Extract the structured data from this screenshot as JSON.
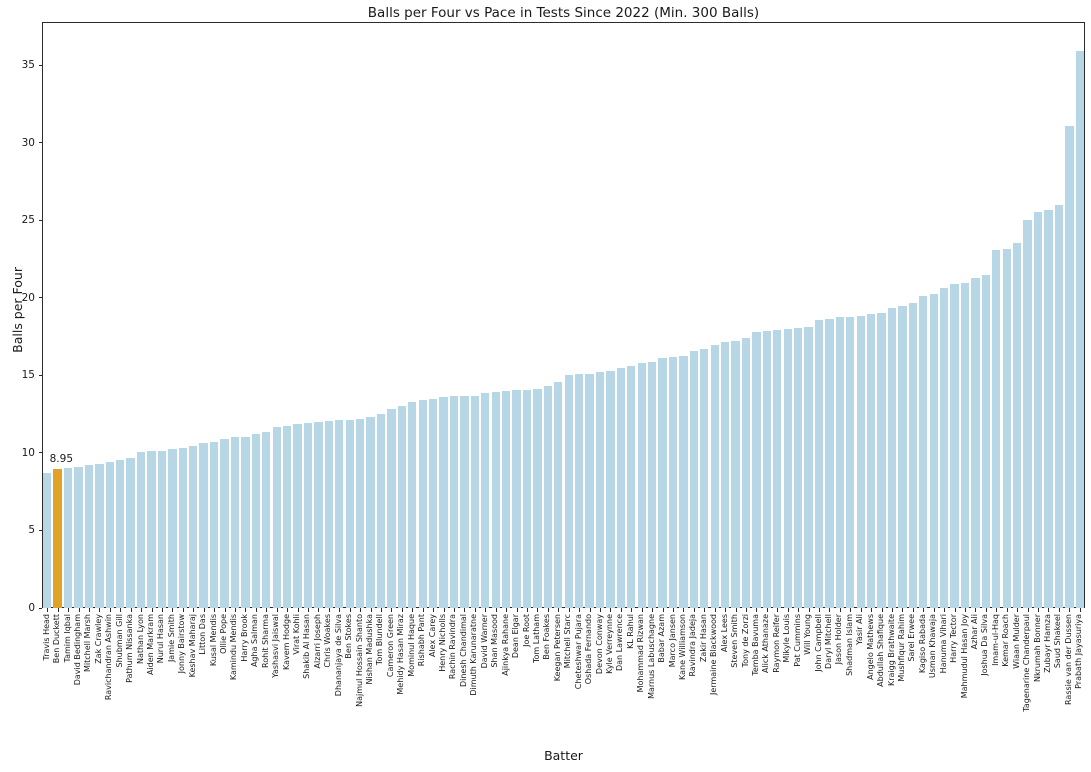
{
  "chart_data": {
    "type": "bar",
    "title": "Balls per Four vs Pace in Tests Since 2022 (Min. 300 Balls)",
    "xlabel": "Batter",
    "ylabel": "Balls per Four",
    "yticks": [
      0,
      5,
      10,
      15,
      20,
      25,
      30,
      35
    ],
    "ylim": [
      0,
      37.8
    ],
    "grid": false,
    "legend": null,
    "bar_color": "#b7d7e6",
    "highlight": {
      "index": 1,
      "color": "#e2a127",
      "label": "8.95",
      "value": 8.95
    },
    "categories": [
      "Travis Head",
      "Ben Duckett",
      "Tamim Iqbal",
      "David Bedingham",
      "Mitchell Marsh",
      "Zak Crawley",
      "Ravichandran Ashwin",
      "Shubman Gill",
      "Pathum Nissanka",
      "Nathan Lyon",
      "Aiden Markram",
      "Nurul Hasan",
      "Jamie Smith",
      "Jonny Bairstow",
      "Keshav Maharaj",
      "Litton Das",
      "Kusal Mendis",
      "Ollie Pope",
      "Kamindu Mendis",
      "Harry Brook",
      "Agha Salman",
      "Rohit Sharma",
      "Yashasvi Jaiswal",
      "Kavem Hodge",
      "Virat Kohli",
      "Shakib Al Hasan",
      "Alzarri Joseph",
      "Chris Woakes",
      "Dhananjaya de Silva",
      "Ben Stokes",
      "Najmul Hossain Shanto",
      "Nishan Madushka",
      "Tom Blundell",
      "Cameron Green",
      "Mehidy Hasan Miraz",
      "Mominul Haque",
      "Rishabh Pant",
      "Alex Carey",
      "Henry Nicholls",
      "Rachin Ravindra",
      "Dinesh Chandimal",
      "Dimuth Karunaratne",
      "David Warner",
      "Shan Masood",
      "Ajinkya Rahane",
      "Dean Elgar",
      "Joe Root",
      "Tom Latham",
      "Ben Foakes",
      "Keegan Petersen",
      "Mitchell Starc",
      "Cheteshwar Pujara",
      "Oshada Fernando",
      "Devon Conway",
      "Kyle Verreynne",
      "Dan Lawrence",
      "KL Rahul",
      "Mohammad Rizwan",
      "Marnus Labuschagne",
      "Babar Azam",
      "Marco Jansen",
      "Kane Williamson",
      "Ravindra Jadeja",
      "Zakir Hasan",
      "Jermaine Blackwood",
      "Alex Lees",
      "Steven Smith",
      "Tony de Zorzi",
      "Temba Bavuma",
      "Alick Athanaze",
      "Raymon Reifer",
      "Mikyle Louis",
      "Pat Cummins",
      "Will Young",
      "John Campbell",
      "Daryl Mitchell",
      "Jason Holder",
      "Shadman Islam",
      "Yasir Ali",
      "Angelo Mathews",
      "Abdullah Shafique",
      "Kraigg Brathwaite",
      "Mushfiqur Rahim",
      "Sarel Erwee",
      "Kagiso Rabada",
      "Usman Khawaja",
      "Hanuma Vihari",
      "Harry Tector",
      "Mahmudul Hasan Joy",
      "Azhar Ali",
      "Joshua Da Silva",
      "Imam-ul-Haq",
      "Kemar Roach",
      "Wiaan Mulder",
      "Tagenarine Chanderpaul",
      "Nkrumah Bonner",
      "Zubayr Hamza",
      "Saud Shakeel",
      "Rassie van der Dussen",
      "Prabath Jayasuriya"
    ],
    "values": [
      8.7,
      8.95,
      9.0,
      9.1,
      9.2,
      9.3,
      9.4,
      9.55,
      9.7,
      10.05,
      10.1,
      10.15,
      10.25,
      10.3,
      10.45,
      10.65,
      10.7,
      10.9,
      11.0,
      11.05,
      11.25,
      11.35,
      11.65,
      11.75,
      11.85,
      11.95,
      12.0,
      12.05,
      12.1,
      12.15,
      12.2,
      12.3,
      12.5,
      12.85,
      13.05,
      13.3,
      13.4,
      13.45,
      13.6,
      13.65,
      13.65,
      13.7,
      13.85,
      13.95,
      14.0,
      14.05,
      14.05,
      14.15,
      14.35,
      14.6,
      15.05,
      15.1,
      15.1,
      15.2,
      15.3,
      15.45,
      15.6,
      15.8,
      15.9,
      16.15,
      16.2,
      16.25,
      16.55,
      16.7,
      16.95,
      17.15,
      17.2,
      17.4,
      17.8,
      17.85,
      17.95,
      18.0,
      18.05,
      18.1,
      18.6,
      18.65,
      18.75,
      18.8,
      18.85,
      18.95,
      19.05,
      19.35,
      19.45,
      19.65,
      20.1,
      20.25,
      20.65,
      20.9,
      20.95,
      21.3,
      21.45,
      23.1,
      23.15,
      23.55,
      25.05,
      25.55,
      25.65,
      26.0,
      31.1,
      35.9
    ]
  }
}
